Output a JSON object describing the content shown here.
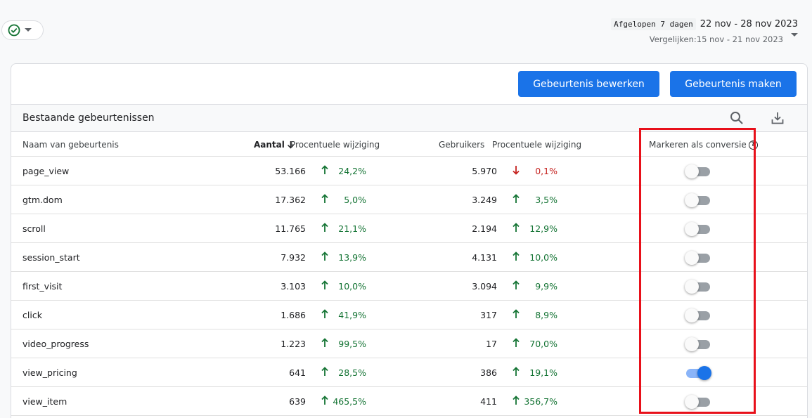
{
  "date_range": {
    "period_label": "Afgelopen 7 dagen",
    "range": "22 nov - 28 nov 2023",
    "compare": "Vergelijken:15 nov - 21 nov 2023"
  },
  "icons": {
    "status": "check-circle-icon",
    "dropdown": "caret-down-icon",
    "search": "search-icon",
    "download": "download-icon",
    "sort": "arrow-down-icon",
    "help": "help-icon",
    "increase": "arrow-up-icon",
    "decrease": "arrow-down-icon"
  },
  "colors": {
    "accent": "#1a73e8",
    "positive": "#137333",
    "negative": "#c5221f",
    "highlight": "#e8101a"
  },
  "buttons": {
    "edit_event": "Gebeurtenis bewerken",
    "create_event": "Gebeurtenis maken"
  },
  "table": {
    "title": "Bestaande gebeurtenissen",
    "columns": {
      "name": "Naam van gebeurtenis",
      "count": "Aantal",
      "count_change": "Procentuele wijziging",
      "users": "Gebruikers",
      "users_change": "Procentuele wijziging",
      "mark_conversion": "Markeren als conversie",
      "help_symbol": "?"
    },
    "rows": [
      {
        "name": "page_view",
        "count": "53.166",
        "count_change": "24,2%",
        "count_trend": "up",
        "users": "5.970",
        "users_change": "0,1%",
        "users_trend": "down",
        "conversion": false
      },
      {
        "name": "gtm.dom",
        "count": "17.362",
        "count_change": "5,0%",
        "count_trend": "up",
        "users": "3.249",
        "users_change": "3,5%",
        "users_trend": "up",
        "conversion": false
      },
      {
        "name": "scroll",
        "count": "11.765",
        "count_change": "21,1%",
        "count_trend": "up",
        "users": "2.194",
        "users_change": "12,9%",
        "users_trend": "up",
        "conversion": false
      },
      {
        "name": "session_start",
        "count": "7.932",
        "count_change": "13,9%",
        "count_trend": "up",
        "users": "4.131",
        "users_change": "10,0%",
        "users_trend": "up",
        "conversion": false
      },
      {
        "name": "first_visit",
        "count": "3.103",
        "count_change": "10,0%",
        "count_trend": "up",
        "users": "3.094",
        "users_change": "9,9%",
        "users_trend": "up",
        "conversion": false
      },
      {
        "name": "click",
        "count": "1.686",
        "count_change": "41,9%",
        "count_trend": "up",
        "users": "317",
        "users_change": "8,9%",
        "users_trend": "up",
        "conversion": false
      },
      {
        "name": "video_progress",
        "count": "1.223",
        "count_change": "99,5%",
        "count_trend": "up",
        "users": "17",
        "users_change": "70,0%",
        "users_trend": "up",
        "conversion": false
      },
      {
        "name": "view_pricing",
        "count": "641",
        "count_change": "28,5%",
        "count_trend": "up",
        "users": "386",
        "users_change": "19,1%",
        "users_trend": "up",
        "conversion": true
      },
      {
        "name": "view_item",
        "count": "639",
        "count_change": "465,5%",
        "count_trend": "up",
        "users": "411",
        "users_change": "356,7%",
        "users_trend": "up",
        "conversion": false
      }
    ]
  }
}
